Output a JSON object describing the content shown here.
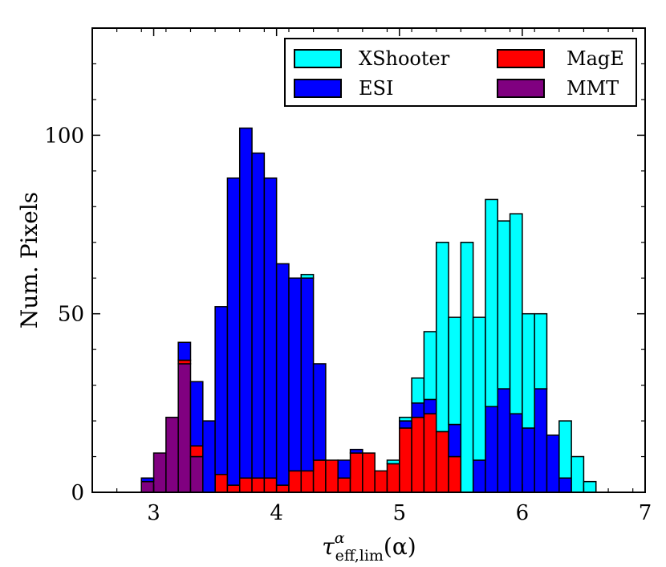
{
  "chart_data": {
    "type": "bar",
    "stacked": true,
    "ylabel": "Num. Pixels",
    "xlabel": {
      "base": "τ",
      "sup": "α",
      "sub": "eff,lim",
      "tail": "(α)"
    },
    "xlim": [
      2.5,
      7.0
    ],
    "ylim": [
      0,
      130
    ],
    "xticks": [
      3,
      4,
      5,
      6,
      7
    ],
    "xtick_labels": [
      "3",
      "4",
      "5",
      "6",
      "7"
    ],
    "yticks": [
      0,
      50,
      100
    ],
    "ytick_labels": [
      "0",
      "50",
      "100"
    ],
    "bin_edges": [
      2.9,
      3.0,
      3.1,
      3.2,
      3.3,
      3.4,
      3.5,
      3.6,
      3.7,
      3.8,
      3.9,
      4.0,
      4.1,
      4.2,
      4.3,
      4.4,
      4.5,
      4.6,
      4.7,
      4.8,
      4.9,
      5.0,
      5.1,
      5.2,
      5.3,
      5.4,
      5.5,
      5.6,
      5.7,
      5.8,
      5.9,
      6.0,
      6.1,
      6.2,
      6.3,
      6.4,
      6.5,
      6.6
    ],
    "series": [
      {
        "name": "MMT",
        "color": "#800080",
        "values": [
          3,
          11,
          21,
          36,
          10,
          0,
          0,
          0,
          0,
          0,
          0,
          0,
          0,
          0,
          0,
          0,
          0,
          0,
          0,
          0,
          0,
          0,
          0,
          0,
          0,
          0,
          0,
          0,
          0,
          0,
          0,
          0,
          0,
          0,
          0,
          0,
          0
        ]
      },
      {
        "name": "MagE",
        "color": "#ff0000",
        "values": [
          0,
          0,
          0,
          1,
          3,
          0,
          5,
          2,
          4,
          4,
          4,
          2,
          6,
          6,
          9,
          9,
          4,
          11,
          11,
          6,
          8,
          18,
          21,
          22,
          17,
          10,
          0,
          0,
          0,
          0,
          0,
          0,
          0,
          0,
          0,
          0,
          0
        ]
      },
      {
        "name": "ESI",
        "color": "#0000ff",
        "values": [
          1,
          0,
          0,
          5,
          18,
          20,
          47,
          86,
          98,
          91,
          84,
          62,
          54,
          54,
          27,
          0,
          5,
          1,
          0,
          0,
          0,
          2,
          4,
          4,
          0,
          9,
          0,
          9,
          24,
          29,
          22,
          18,
          29,
          16,
          4,
          0,
          0
        ]
      },
      {
        "name": "XShooter",
        "color": "#00ffff",
        "values": [
          0,
          0,
          0,
          0,
          0,
          0,
          0,
          0,
          0,
          0,
          0,
          0,
          0,
          1,
          0,
          0,
          0,
          0,
          0,
          0,
          1,
          1,
          7,
          19,
          53,
          30,
          70,
          40,
          58,
          47,
          56,
          32,
          21,
          0,
          16,
          10,
          3
        ]
      }
    ],
    "legend": {
      "placement": "top-right",
      "entries": [
        {
          "label": "XShooter",
          "color": "#00ffff"
        },
        {
          "label": "MagE",
          "color": "#ff0000"
        },
        {
          "label": "ESI",
          "color": "#0000ff"
        },
        {
          "label": "MMT",
          "color": "#800080"
        }
      ]
    }
  }
}
